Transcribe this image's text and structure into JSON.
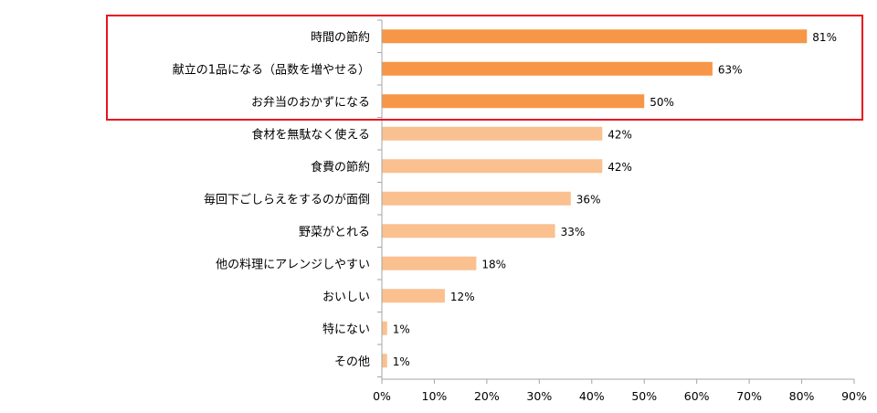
{
  "chart_data": {
    "type": "bar",
    "orientation": "horizontal",
    "categories": [
      "時間の節約",
      "献立の1品になる（品数を増やせる）",
      "お弁当のおかずになる",
      "食材を無駄なく使える",
      "食費の節約",
      "毎回下ごしらえをするのが面倒",
      "野菜がとれる",
      "他の料理にアレンジしやすい",
      "おいしい",
      "特にない",
      "その他"
    ],
    "values": [
      81,
      63,
      50,
      42,
      42,
      36,
      33,
      18,
      12,
      1,
      1
    ],
    "value_labels": [
      "81%",
      "63%",
      "50%",
      "42%",
      "42%",
      "36%",
      "33%",
      "18%",
      "12%",
      "1%",
      "1%"
    ],
    "xlim": [
      0,
      90
    ],
    "x_ticks": [
      "0%",
      "10%",
      "20%",
      "30%",
      "40%",
      "50%",
      "60%",
      "70%",
      "80%",
      "90%"
    ],
    "x_tick_values": [
      0,
      10,
      20,
      30,
      40,
      50,
      60,
      70,
      80,
      90
    ],
    "highlighted_count": 3,
    "grid": false,
    "title": "",
    "xlabel": "",
    "ylabel": "",
    "colors": {
      "highlight_bar": "#F79646",
      "normal_bar": "#FAC090",
      "highlight_box": "#E8131F",
      "axis": "#A6A6A6"
    }
  }
}
